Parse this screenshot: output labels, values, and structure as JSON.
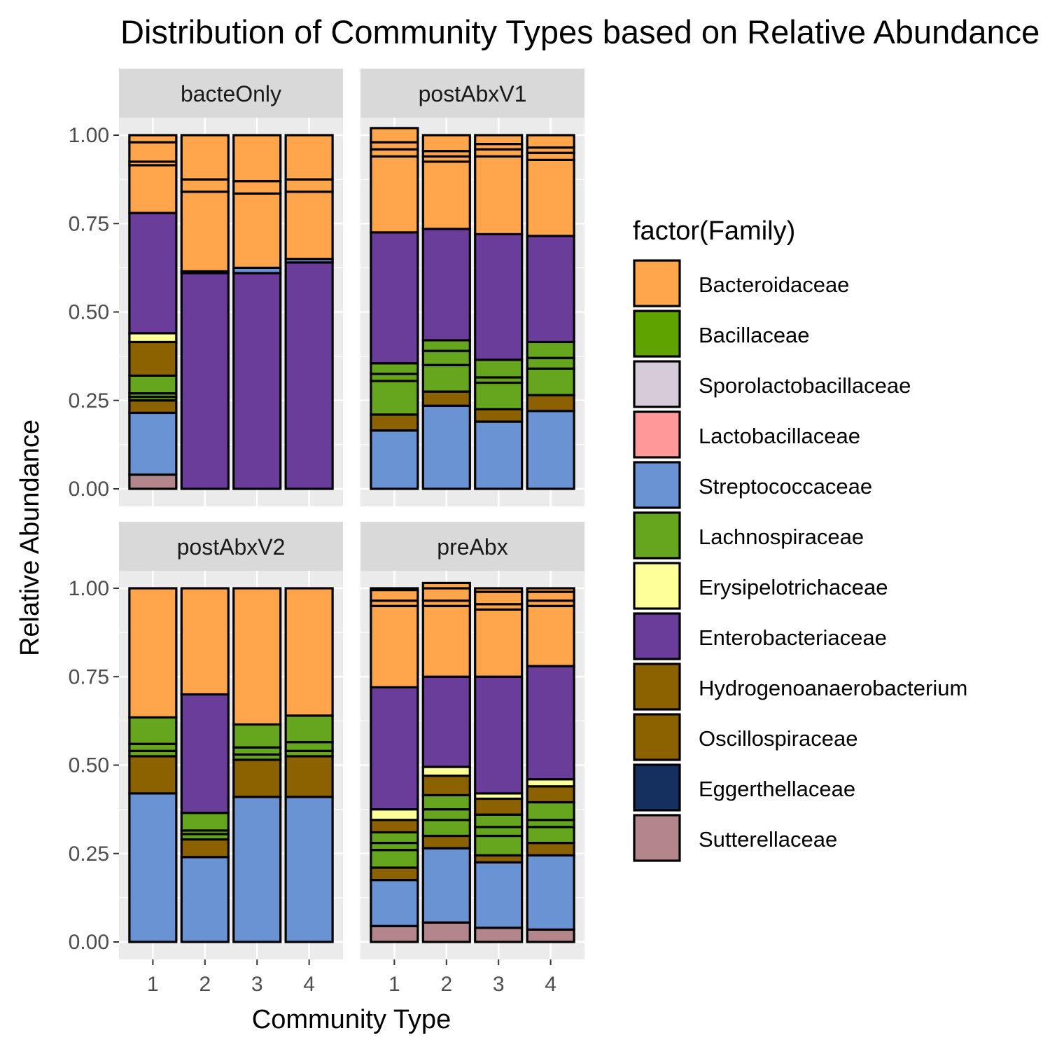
{
  "chart_data": {
    "type": "bar",
    "stacked": true,
    "title": "Distribution of Community Types based on Relative Abundance",
    "xlabel": "Community Type",
    "ylabel": "Relative Abundance",
    "ylim": [
      0,
      1
    ],
    "yticks": [
      "0.00",
      "0.25",
      "0.50",
      "0.75",
      "1.00"
    ],
    "ytick_values": [
      0,
      0.25,
      0.5,
      0.75,
      1.0
    ],
    "categories": [
      "1",
      "2",
      "3",
      "4"
    ],
    "grid": true,
    "legend": {
      "title": "factor(Family)",
      "position": "right",
      "entries": [
        {
          "name": "Bacteroidaceae",
          "color": "#FFA64D"
        },
        {
          "name": "Bacillaceae",
          "color": "#5FA300"
        },
        {
          "name": "Sporolactobacillaceae",
          "color": "#D6CCD9"
        },
        {
          "name": "Lactobacillaceae",
          "color": "#FF9999"
        },
        {
          "name": "Streptococcaceae",
          "color": "#6A93D4"
        },
        {
          "name": "Lachnospiraceae",
          "color": "#66A61E"
        },
        {
          "name": "Erysipelotrichaceae",
          "color": "#FFFF99"
        },
        {
          "name": "Enterobacteriaceae",
          "color": "#6A3D9A"
        },
        {
          "name": "Hydrogenoanaerobacterium",
          "color": "#8C6100"
        },
        {
          "name": "Oscillospiraceae",
          "color": "#8C6100"
        },
        {
          "name": "Eggerthellaceae",
          "color": "#15305E"
        },
        {
          "name": "Sutterellaceae",
          "color": "#B3868C"
        }
      ]
    },
    "panels": [
      {
        "label": "bacteOnly",
        "bars": [
          {
            "category": "1",
            "segments": [
              {
                "family": "Sutterellaceae",
                "value": 0.04
              },
              {
                "family": "Streptococcaceae",
                "value": 0.175
              },
              {
                "family": "Oscillospiraceae",
                "value": 0.035
              },
              {
                "family": "Lachnospiraceae",
                "value": 0.01
              },
              {
                "family": "Lachnospiraceae",
                "value": 0.01
              },
              {
                "family": "Lachnospiraceae",
                "value": 0.05
              },
              {
                "family": "Hydrogenoanaerobacterium",
                "value": 0.095
              },
              {
                "family": "Erysipelotrichaceae",
                "value": 0.025
              },
              {
                "family": "Enterobacteriaceae",
                "value": 0.34
              },
              {
                "family": "Bacteroidaceae",
                "value": 0.135
              },
              {
                "family": "Bacteroidaceae",
                "value": 0.01
              },
              {
                "family": "Bacteroidaceae",
                "value": 0.055
              },
              {
                "family": "Bacteroidaceae",
                "value": 0.02
              }
            ]
          },
          {
            "category": "2",
            "segments": [
              {
                "family": "Enterobacteriaceae",
                "value": 0.61
              },
              {
                "family": "Streptococcaceae",
                "value": 0.005
              },
              {
                "family": "Bacteroidaceae",
                "value": 0.225
              },
              {
                "family": "Bacteroidaceae",
                "value": 0.035
              },
              {
                "family": "Bacteroidaceae",
                "value": 0.125
              }
            ]
          },
          {
            "category": "3",
            "segments": [
              {
                "family": "Enterobacteriaceae",
                "value": 0.61
              },
              {
                "family": "Streptococcaceae",
                "value": 0.015
              },
              {
                "family": "Bacteroidaceae",
                "value": 0.21
              },
              {
                "family": "Bacteroidaceae",
                "value": 0.035
              },
              {
                "family": "Bacteroidaceae",
                "value": 0.13
              }
            ]
          },
          {
            "category": "4",
            "segments": [
              {
                "family": "Enterobacteriaceae",
                "value": 0.64
              },
              {
                "family": "Streptococcaceae",
                "value": 0.01
              },
              {
                "family": "Bacteroidaceae",
                "value": 0.19
              },
              {
                "family": "Bacteroidaceae",
                "value": 0.035
              },
              {
                "family": "Bacteroidaceae",
                "value": 0.125
              }
            ]
          }
        ]
      },
      {
        "label": "postAbxV1",
        "bars": [
          {
            "category": "1",
            "segments": [
              {
                "family": "Streptococcaceae",
                "value": 0.165
              },
              {
                "family": "Oscillospiraceae",
                "value": 0.045
              },
              {
                "family": "Lachnospiraceae",
                "value": 0.095
              },
              {
                "family": "Lachnospiraceae",
                "value": 0.02
              },
              {
                "family": "Lachnospiraceae",
                "value": 0.03
              },
              {
                "family": "Enterobacteriaceae",
                "value": 0.37
              },
              {
                "family": "Bacteroidaceae",
                "value": 0.215
              },
              {
                "family": "Bacteroidaceae",
                "value": 0.02
              },
              {
                "family": "Bacteroidaceae",
                "value": 0.02
              },
              {
                "family": "Bacteroidaceae",
                "value": 0.04
              }
            ]
          },
          {
            "category": "2",
            "segments": [
              {
                "family": "Streptococcaceae",
                "value": 0.235
              },
              {
                "family": "Oscillospiraceae",
                "value": 0.04
              },
              {
                "family": "Lachnospiraceae",
                "value": 0.075
              },
              {
                "family": "Lachnospiraceae",
                "value": 0.04
              },
              {
                "family": "Lachnospiraceae",
                "value": 0.03
              },
              {
                "family": "Enterobacteriaceae",
                "value": 0.315
              },
              {
                "family": "Bacteroidaceae",
                "value": 0.19
              },
              {
                "family": "Bacteroidaceae",
                "value": 0.015
              },
              {
                "family": "Bacteroidaceae",
                "value": 0.015
              },
              {
                "family": "Bacteroidaceae",
                "value": 0.045
              }
            ]
          },
          {
            "category": "3",
            "segments": [
              {
                "family": "Streptococcaceae",
                "value": 0.19
              },
              {
                "family": "Oscillospiraceae",
                "value": 0.035
              },
              {
                "family": "Lachnospiraceae",
                "value": 0.075
              },
              {
                "family": "Lachnospiraceae",
                "value": 0.015
              },
              {
                "family": "Lachnospiraceae",
                "value": 0.05
              },
              {
                "family": "Enterobacteriaceae",
                "value": 0.355
              },
              {
                "family": "Bacteroidaceae",
                "value": 0.22
              },
              {
                "family": "Bacteroidaceae",
                "value": 0.02
              },
              {
                "family": "Bacteroidaceae",
                "value": 0.015
              },
              {
                "family": "Bacteroidaceae",
                "value": 0.025
              }
            ]
          },
          {
            "category": "4",
            "segments": [
              {
                "family": "Streptococcaceae",
                "value": 0.22
              },
              {
                "family": "Oscillospiraceae",
                "value": 0.045
              },
              {
                "family": "Lachnospiraceae",
                "value": 0.075
              },
              {
                "family": "Lachnospiraceae",
                "value": 0.03
              },
              {
                "family": "Lachnospiraceae",
                "value": 0.045
              },
              {
                "family": "Enterobacteriaceae",
                "value": 0.3
              },
              {
                "family": "Bacteroidaceae",
                "value": 0.215
              },
              {
                "family": "Bacteroidaceae",
                "value": 0.02
              },
              {
                "family": "Bacteroidaceae",
                "value": 0.015
              },
              {
                "family": "Bacteroidaceae",
                "value": 0.035
              }
            ]
          }
        ]
      },
      {
        "label": "postAbxV2",
        "bars": [
          {
            "category": "1",
            "segments": [
              {
                "family": "Streptococcaceae",
                "value": 0.42
              },
              {
                "family": "Oscillospiraceae",
                "value": 0.105
              },
              {
                "family": "Lachnospiraceae",
                "value": 0.015
              },
              {
                "family": "Lachnospiraceae",
                "value": 0.02
              },
              {
                "family": "Lachnospiraceae",
                "value": 0.075
              },
              {
                "family": "Bacteroidaceae",
                "value": 0.365
              }
            ]
          },
          {
            "category": "2",
            "segments": [
              {
                "family": "Streptococcaceae",
                "value": 0.24
              },
              {
                "family": "Oscillospiraceae",
                "value": 0.05
              },
              {
                "family": "Lachnospiraceae",
                "value": 0.015
              },
              {
                "family": "Lachnospiraceae",
                "value": 0.01
              },
              {
                "family": "Lachnospiraceae",
                "value": 0.05
              },
              {
                "family": "Enterobacteriaceae",
                "value": 0.335
              },
              {
                "family": "Bacteroidaceae",
                "value": 0.3
              }
            ]
          },
          {
            "category": "3",
            "segments": [
              {
                "family": "Streptococcaceae",
                "value": 0.41
              },
              {
                "family": "Oscillospiraceae",
                "value": 0.105
              },
              {
                "family": "Lachnospiraceae",
                "value": 0.015
              },
              {
                "family": "Lachnospiraceae",
                "value": 0.02
              },
              {
                "family": "Lachnospiraceae",
                "value": 0.065
              },
              {
                "family": "Bacteroidaceae",
                "value": 0.385
              }
            ]
          },
          {
            "category": "4",
            "segments": [
              {
                "family": "Streptococcaceae",
                "value": 0.41
              },
              {
                "family": "Oscillospiraceae",
                "value": 0.115
              },
              {
                "family": "Lachnospiraceae",
                "value": 0.015
              },
              {
                "family": "Lachnospiraceae",
                "value": 0.025
              },
              {
                "family": "Lachnospiraceae",
                "value": 0.075
              },
              {
                "family": "Bacteroidaceae",
                "value": 0.36
              }
            ]
          }
        ]
      },
      {
        "label": "preAbx",
        "bars": [
          {
            "category": "1",
            "segments": [
              {
                "family": "Sutterellaceae",
                "value": 0.045
              },
              {
                "family": "Streptococcaceae",
                "value": 0.13
              },
              {
                "family": "Oscillospiraceae",
                "value": 0.035
              },
              {
                "family": "Lachnospiraceae",
                "value": 0.05
              },
              {
                "family": "Lachnospiraceae",
                "value": 0.02
              },
              {
                "family": "Lachnospiraceae",
                "value": 0.03
              },
              {
                "family": "Hydrogenoanaerobacterium",
                "value": 0.035
              },
              {
                "family": "Erysipelotrichaceae",
                "value": 0.03
              },
              {
                "family": "Enterobacteriaceae",
                "value": 0.345
              },
              {
                "family": "Bacteroidaceae",
                "value": 0.23
              },
              {
                "family": "Bacteroidaceae",
                "value": 0.015
              },
              {
                "family": "Bacteroidaceae",
                "value": 0.03
              },
              {
                "family": "Bacteroidaceae",
                "value": 0.005
              }
            ]
          },
          {
            "category": "2",
            "segments": [
              {
                "family": "Sutterellaceae",
                "value": 0.055
              },
              {
                "family": "Streptococcaceae",
                "value": 0.21
              },
              {
                "family": "Oscillospiraceae",
                "value": 0.035
              },
              {
                "family": "Lachnospiraceae",
                "value": 0.045
              },
              {
                "family": "Lachnospiraceae",
                "value": 0.03
              },
              {
                "family": "Lachnospiraceae",
                "value": 0.04
              },
              {
                "family": "Hydrogenoanaerobacterium",
                "value": 0.055
              },
              {
                "family": "Erysipelotrichaceae",
                "value": 0.025
              },
              {
                "family": "Enterobacteriaceae",
                "value": 0.255
              },
              {
                "family": "Bacteroidaceae",
                "value": 0.2
              },
              {
                "family": "Bacteroidaceae",
                "value": 0.015
              },
              {
                "family": "Bacteroidaceae",
                "value": 0.035
              },
              {
                "family": "Bacteroidaceae",
                "value": 0.015
              }
            ]
          },
          {
            "category": "3",
            "segments": [
              {
                "family": "Sutterellaceae",
                "value": 0.04
              },
              {
                "family": "Streptococcaceae",
                "value": 0.185
              },
              {
                "family": "Oscillospiraceae",
                "value": 0.02
              },
              {
                "family": "Lachnospiraceae",
                "value": 0.055
              },
              {
                "family": "Lachnospiraceae",
                "value": 0.025
              },
              {
                "family": "Lachnospiraceae",
                "value": 0.035
              },
              {
                "family": "Hydrogenoanaerobacterium",
                "value": 0.045
              },
              {
                "family": "Erysipelotrichaceae",
                "value": 0.015
              },
              {
                "family": "Enterobacteriaceae",
                "value": 0.33
              },
              {
                "family": "Bacteroidaceae",
                "value": 0.19
              },
              {
                "family": "Bacteroidaceae",
                "value": 0.015
              },
              {
                "family": "Bacteroidaceae",
                "value": 0.035
              },
              {
                "family": "Bacteroidaceae",
                "value": 0.01
              }
            ]
          },
          {
            "category": "4",
            "segments": [
              {
                "family": "Sutterellaceae",
                "value": 0.035
              },
              {
                "family": "Streptococcaceae",
                "value": 0.21
              },
              {
                "family": "Oscillospiraceae",
                "value": 0.035
              },
              {
                "family": "Lachnospiraceae",
                "value": 0.045
              },
              {
                "family": "Lachnospiraceae",
                "value": 0.02
              },
              {
                "family": "Lachnospiraceae",
                "value": 0.05
              },
              {
                "family": "Hydrogenoanaerobacterium",
                "value": 0.045
              },
              {
                "family": "Erysipelotrichaceae",
                "value": 0.02
              },
              {
                "family": "Enterobacteriaceae",
                "value": 0.32
              },
              {
                "family": "Bacteroidaceae",
                "value": 0.17
              },
              {
                "family": "Bacteroidaceae",
                "value": 0.015
              },
              {
                "family": "Bacteroidaceae",
                "value": 0.025
              },
              {
                "family": "Bacteroidaceae",
                "value": 0.01
              }
            ]
          }
        ]
      }
    ]
  }
}
